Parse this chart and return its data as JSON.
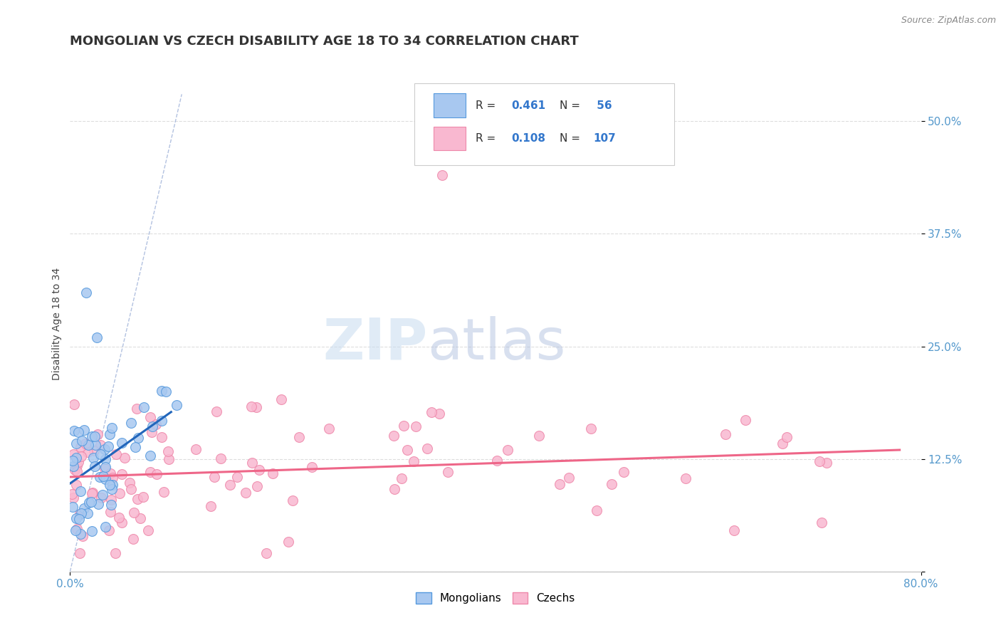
{
  "title": "MONGOLIAN VS CZECH DISABILITY AGE 18 TO 34 CORRELATION CHART",
  "source": "Source: ZipAtlas.com",
  "ylabel": "Disability Age 18 to 34",
  "xlim": [
    0.0,
    0.8
  ],
  "ylim": [
    0.0,
    0.55
  ],
  "x_tick_labels": [
    "0.0%",
    "80.0%"
  ],
  "y_tick_vals": [
    0.0,
    0.125,
    0.25,
    0.375,
    0.5
  ],
  "y_tick_labels": [
    "",
    "12.5%",
    "25.0%",
    "37.5%",
    "50.0%"
  ],
  "mongolian_color": "#A8C8F0",
  "czech_color": "#F9B8D0",
  "mongolian_edge": "#5599DD",
  "czech_edge": "#EE88AA",
  "trendline_mongolian_color": "#2266BB",
  "trendline_czech_color": "#EE6688",
  "dashed_line_color": "#AABBDD",
  "background_color": "#FFFFFF",
  "plot_bg_color": "#FFFFFF",
  "grid_color": "#DDDDDD",
  "tick_color": "#5599CC",
  "title_fontsize": 13,
  "axis_label_fontsize": 10,
  "tick_fontsize": 11,
  "legend_fontsize": 12
}
